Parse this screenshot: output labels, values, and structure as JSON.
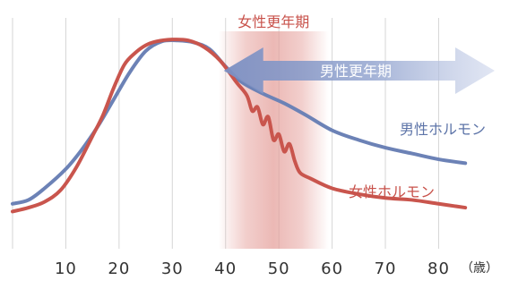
{
  "chart_data": {
    "type": "line",
    "x_unit_label": "（歳）",
    "xlim": [
      0,
      88
    ],
    "ylim": [
      0,
      100
    ],
    "x_ticks": [
      10,
      20,
      30,
      40,
      50,
      60,
      70,
      80
    ],
    "grid": "vertical",
    "series": [
      {
        "name": "男性ホルモン",
        "color": "#6c82b6",
        "points": [
          [
            0,
            14
          ],
          [
            3,
            16
          ],
          [
            6,
            22
          ],
          [
            10,
            32
          ],
          [
            13,
            42
          ],
          [
            16,
            54
          ],
          [
            19,
            68
          ],
          [
            22,
            82
          ],
          [
            25,
            93
          ],
          [
            28,
            98
          ],
          [
            31,
            98.5
          ],
          [
            34,
            97.5
          ],
          [
            37,
            94
          ],
          [
            40,
            85
          ],
          [
            43,
            77
          ],
          [
            47,
            71
          ],
          [
            51,
            66
          ],
          [
            55,
            60
          ],
          [
            60,
            52
          ],
          [
            65,
            47
          ],
          [
            70,
            43
          ],
          [
            75,
            40
          ],
          [
            80,
            37
          ],
          [
            85,
            35
          ]
        ]
      },
      {
        "name": "女性ホルモン",
        "color": "#c9554d",
        "points": [
          [
            0,
            10
          ],
          [
            3,
            12
          ],
          [
            6,
            15
          ],
          [
            9,
            21
          ],
          [
            12,
            33
          ],
          [
            15,
            49
          ],
          [
            17,
            60
          ],
          [
            19,
            74
          ],
          [
            21,
            86
          ],
          [
            23,
            92
          ],
          [
            25,
            96
          ],
          [
            27,
            98
          ],
          [
            30,
            99
          ],
          [
            33,
            98.5
          ],
          [
            36,
            95
          ],
          [
            39,
            88
          ],
          [
            42,
            77
          ],
          [
            44,
            70
          ],
          [
            45,
            62
          ],
          [
            46,
            64
          ],
          [
            47,
            55
          ],
          [
            48,
            59
          ],
          [
            49,
            47
          ],
          [
            50,
            50
          ],
          [
            51,
            41
          ],
          [
            52,
            45
          ],
          [
            53,
            36
          ],
          [
            54,
            30
          ],
          [
            56,
            27
          ],
          [
            60,
            22
          ],
          [
            65,
            19
          ],
          [
            70,
            17
          ],
          [
            75,
            16
          ],
          [
            80,
            14
          ],
          [
            85,
            12
          ]
        ]
      }
    ]
  },
  "annotations": {
    "female_period": {
      "label": "女性更年期",
      "from": 41,
      "to": 57,
      "color": "#d98680"
    },
    "male_period": {
      "label": "男性更年期",
      "from": 40,
      "to": 88,
      "color": "#7f93c4"
    },
    "male_series_label": "男性ホルモン",
    "female_series_label": "女性ホルモン"
  }
}
